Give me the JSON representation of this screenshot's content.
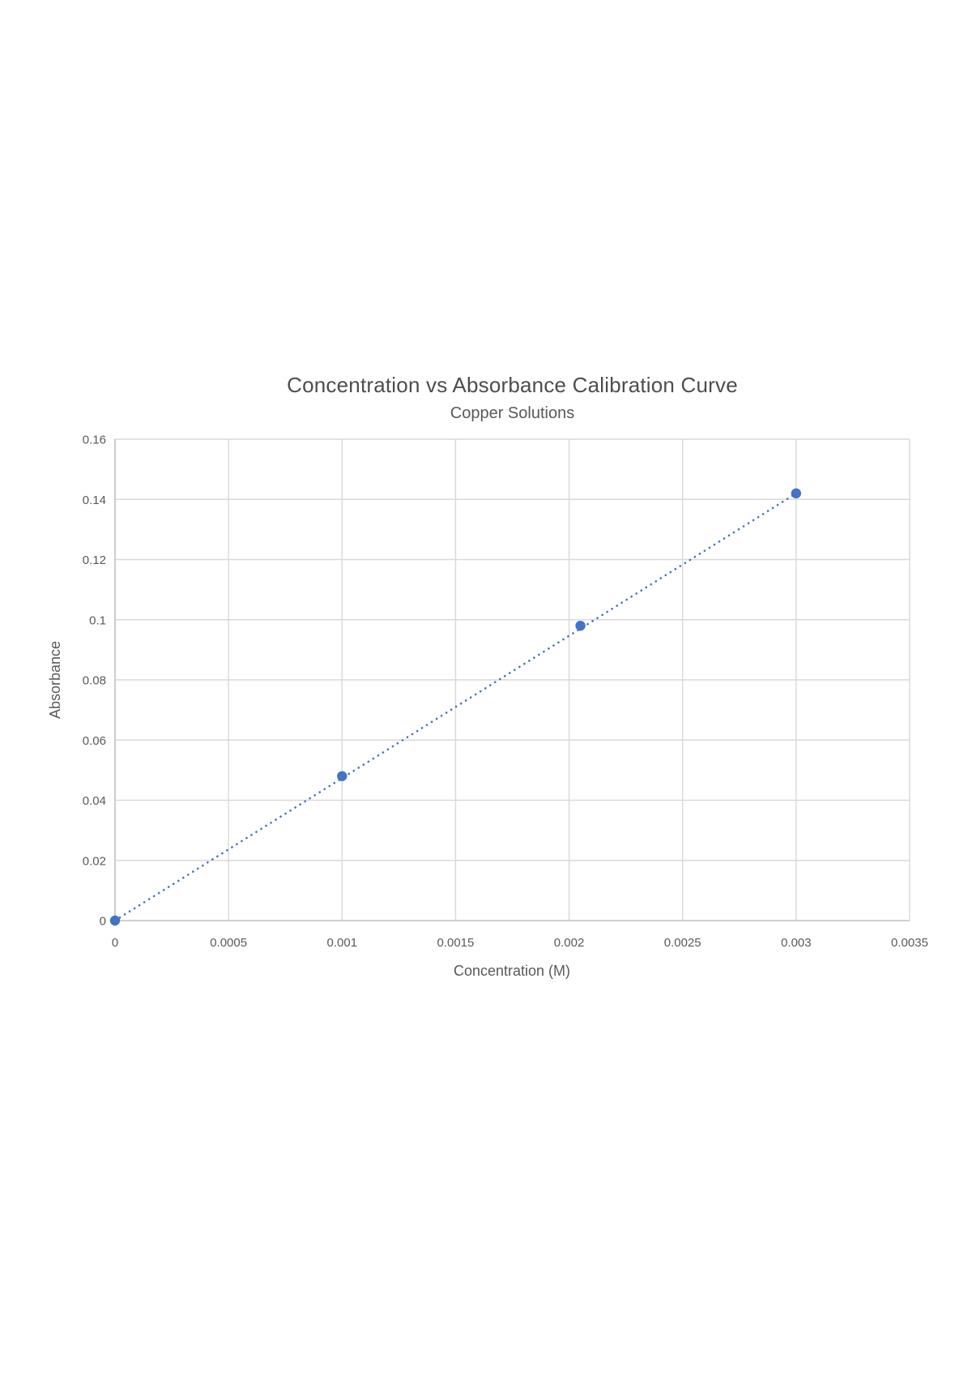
{
  "page": {
    "background": "#ffffff",
    "kind": "document page with embedded chart"
  },
  "colors": {
    "accent_blue": "#4472C4",
    "gridline": "#D9D9D9",
    "axis_line": "#BFBFBF",
    "label_text": "#595959",
    "title_text": "#4D4D4D"
  },
  "chart_data": {
    "type": "scatter",
    "title": "Concentration vs Absorbance Calibration Curve",
    "subtitle": "Copper Solutions",
    "xlabel": "Concentration (M)",
    "ylabel": "Absorbance",
    "xlim": [
      0,
      0.0035
    ],
    "ylim": [
      0,
      0.16
    ],
    "grid": true,
    "legend": false,
    "x_ticks": [
      {
        "value": 0,
        "label": "0"
      },
      {
        "value": 0.0005,
        "label": "0.0005"
      },
      {
        "value": 0.001,
        "label": "0.001"
      },
      {
        "value": 0.0015,
        "label": "0.0015"
      },
      {
        "value": 0.002,
        "label": "0.002"
      },
      {
        "value": 0.0025,
        "label": "0.0025"
      },
      {
        "value": 0.003,
        "label": "0.003"
      },
      {
        "value": 0.0035,
        "label": "0.0035"
      }
    ],
    "y_ticks": [
      {
        "value": 0,
        "label": "0"
      },
      {
        "value": 0.02,
        "label": "0.02"
      },
      {
        "value": 0.04,
        "label": "0.04"
      },
      {
        "value": 0.06,
        "label": "0.06"
      },
      {
        "value": 0.08,
        "label": "0.08"
      },
      {
        "value": 0.1,
        "label": "0.1"
      },
      {
        "value": 0.12,
        "label": "0.12"
      },
      {
        "value": 0.14,
        "label": "0.14"
      },
      {
        "value": 0.16,
        "label": "0.16"
      }
    ],
    "series": [
      {
        "name": "Copper Solutions",
        "marker": "circle",
        "color": "#4472C4",
        "points": [
          {
            "x": 0,
            "y": 0
          },
          {
            "x": 0.001,
            "y": 0.048
          },
          {
            "x": 0.00205,
            "y": 0.098
          },
          {
            "x": 0.003,
            "y": 0.142
          }
        ]
      }
    ],
    "trendline": {
      "style": "dotted",
      "color": "#4472C4",
      "from": {
        "x": 0,
        "y": 0
      },
      "to": {
        "x": 0.003,
        "y": 0.142
      }
    }
  }
}
